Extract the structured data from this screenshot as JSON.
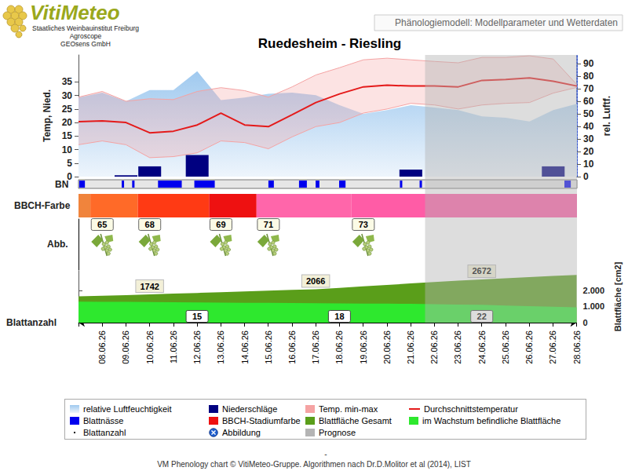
{
  "header": {
    "logo": "VitiMeteo",
    "lines": [
      "Staatliches Weinbauinstitut Freiburg",
      "Agroscope",
      "GEOsens GmbH"
    ],
    "caption": "Phänologiemodell: Modellparameter und Wetterdaten"
  },
  "footer": {
    "dash": "-",
    "text": "VM Phenology chart © VitiMeteo-Gruppe. Algorithmen nach Dr.D.Molitor et al (2014), LIST"
  },
  "prognosis": {
    "name": "Prognose",
    "from": 14.6,
    "color": "#b4b4b4"
  },
  "chart_data": [
    {
      "type": "line",
      "title": "Ruedesheim - Riesling",
      "legend": "bottom",
      "categories": [
        null,
        "08.06.26",
        "09.06.26",
        "10.06.26",
        "11.06.26",
        "12.06.26",
        "13.06.26",
        "14.06.26",
        "15.06.26",
        "16.06.26",
        "17.06.26",
        "18.06.26",
        "19.06.26",
        "20.06.26",
        "21.06.26",
        "22.06.26",
        "23.06.26",
        "24.06.26",
        "25.06.26",
        "26.06.26",
        "27.06.26",
        "28.06.26"
      ],
      "ylabel": "Temp, Nied.",
      "ylim": [
        0,
        45
      ],
      "yticks": [
        0,
        5,
        10,
        15,
        20,
        25,
        30,
        35
      ],
      "y2label": "rel. Luftf.",
      "y2lim": [
        0,
        97
      ],
      "y2ticks": [
        0,
        10,
        20,
        30,
        40,
        50,
        60,
        70,
        80,
        90
      ],
      "series": [
        {
          "name": "relative Luftfeuchtigkeit",
          "type": "area",
          "axis": "y2",
          "color": "#9fc9ef",
          "values": [
            63,
            67,
            60,
            69,
            69,
            84,
            61,
            63,
            66,
            67,
            65,
            57,
            50,
            53,
            57,
            55,
            53,
            48,
            47,
            44,
            53,
            58
          ]
        },
        {
          "name": "Niederschläge",
          "type": "bar",
          "color": "#000080",
          "values": [
            0,
            0,
            0.5,
            3.8,
            0,
            8,
            0,
            0,
            0,
            0,
            0,
            0,
            0,
            0,
            2.6,
            0,
            0,
            0,
            0,
            0,
            3.8,
            0
          ]
        },
        {
          "name": "Temp. min-max",
          "type": "band",
          "color": "#f5a3a3",
          "min": [
            11.8,
            13.2,
            11.8,
            7.0,
            7.4,
            8.8,
            13.2,
            12.6,
            10.3,
            14.7,
            18.5,
            20.0,
            23.5,
            25.0,
            27.1,
            26.5,
            25.0,
            26.5,
            27.1,
            27.4,
            30.9,
            33.0
          ],
          "max": [
            29.4,
            31.5,
            27.9,
            28.8,
            28.5,
            31.5,
            32.9,
            31.8,
            29.4,
            33.2,
            37.6,
            40.3,
            43.2,
            43.8,
            43.2,
            42.6,
            42.1,
            44.1,
            44.1,
            44.7,
            43.5,
            34.0
          ]
        },
        {
          "name": "Durchschnittstemperatur",
          "type": "line",
          "color": "#e41a1a",
          "values": [
            20.3,
            20.6,
            20.0,
            16.2,
            16.8,
            19.1,
            23.5,
            19.1,
            18.5,
            22.9,
            27.4,
            30.6,
            33.2,
            33.8,
            33.5,
            33.5,
            33.2,
            35.6,
            35.9,
            36.5,
            35.3,
            33.5
          ]
        }
      ]
    },
    {
      "type": "timeline",
      "label": "BN",
      "name": "Blattnässe",
      "color": "#0000ee",
      "periods": [
        [
          0.03,
          0.27
        ],
        [
          1.82,
          1.92
        ],
        [
          2.26,
          2.36
        ],
        [
          3.35,
          4.35
        ],
        [
          4.88,
          5.74
        ],
        [
          8.0,
          8.23
        ],
        [
          9.29,
          9.62
        ],
        [
          9.99,
          10.15
        ],
        [
          10.98,
          11.25
        ],
        [
          13.54,
          13.64
        ],
        [
          14.37,
          14.47
        ],
        [
          20.47,
          20.74
        ]
      ]
    },
    {
      "type": "color_band",
      "label": "BBCH-Farbe",
      "name": "BBCH-Stadiumfarbe",
      "color": "#ee1111",
      "segments": [
        {
          "from": 0,
          "to": 0.5,
          "color": "#f0843c"
        },
        {
          "from": 0.5,
          "to": 2.5,
          "color": "#ff6a28",
          "stage": 65,
          "x": "08.06.26"
        },
        {
          "from": 2.5,
          "to": 5.5,
          "color": "#ff3a14",
          "stage": 68,
          "x": "10.06.26"
        },
        {
          "from": 5.5,
          "to": 7.5,
          "color": "#ee1111",
          "stage": 69,
          "x": "13.06.26"
        },
        {
          "from": 7.5,
          "to": 11.5,
          "color": "#ff66aa",
          "stage": 71,
          "x": "15.06.26"
        },
        {
          "from": 11.5,
          "to": 21,
          "color": "#ff5ca6",
          "stage": 73,
          "x": "19.06.26"
        }
      ]
    },
    {
      "type": "images",
      "label": "Abb.",
      "name": "Abbildung",
      "color": "#1f5fd0",
      "x": [
        "08.06.26",
        "10.06.26",
        "13.06.26",
        "15.06.26",
        "19.06.26"
      ]
    },
    {
      "type": "area",
      "categories": [
        null,
        "08.06.26",
        "09.06.26",
        "10.06.26",
        "11.06.26",
        "12.06.26",
        "13.06.26",
        "14.06.26",
        "15.06.26",
        "16.06.26",
        "17.06.26",
        "18.06.26",
        "19.06.26",
        "20.06.26",
        "21.06.26",
        "22.06.26",
        "23.06.26",
        "24.06.26",
        "25.06.26",
        "26.06.26",
        "27.06.26",
        "28.06.26"
      ],
      "ylabel": "Blattfläche [cm2]",
      "ylim": [
        0,
        3200
      ],
      "yticks": [
        0,
        {
          "value": 1000,
          "label": "1.000"
        },
        {
          "value": 2000,
          "label": "2.000"
        }
      ],
      "series": [
        {
          "name": "Blattfläche Gesamt",
          "color": "#5a9e1a",
          "data_labels": true,
          "labelled": [
            "10.06.26",
            "17.06.26",
            "24.06.26"
          ],
          "values": [
            1620,
            1660,
            1700,
            1742,
            1790,
            1836,
            1882,
            1928,
            1974,
            2020,
            2066,
            2150,
            2240,
            2330,
            2420,
            2510,
            2590,
            2672,
            2740,
            2810,
            2880,
            2950
          ]
        },
        {
          "name": "im Wachstum befindliche Blattfläche",
          "color": "#2ee82e",
          "values": [
            1300,
            1290,
            1280,
            1270,
            1260,
            1250,
            1240,
            1230,
            1220,
            1210,
            1200,
            1190,
            1180,
            1170,
            1160,
            1140,
            1120,
            1100,
            1060,
            1020,
            980,
            950
          ]
        }
      ],
      "leaf_count": {
        "name": "Blattanzahl",
        "marker": "dot",
        "x": [
          "12.06.26",
          "18.06.26",
          "24.06.26"
        ],
        "values": [
          15,
          18,
          22
        ]
      }
    }
  ]
}
